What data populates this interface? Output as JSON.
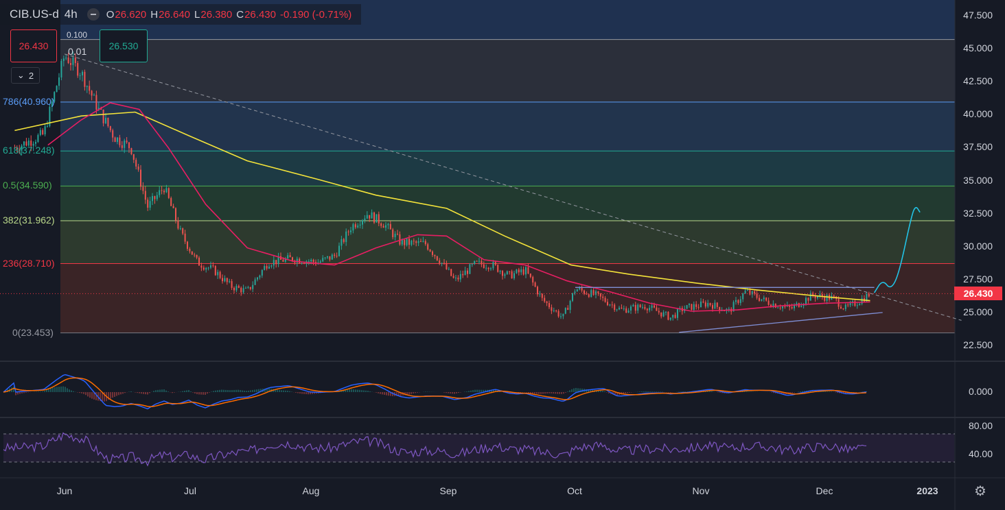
{
  "header": {
    "symbol": "CIB.US-d",
    "timeframe": "4h",
    "open_label": "O",
    "open": "26.620",
    "high_label": "H",
    "high": "26.640",
    "low_label": "L",
    "low": "26.380",
    "close_label": "C",
    "close": "26.430",
    "change": "-0.190 (-0.71%)"
  },
  "trade_panel": {
    "sell": "26.430",
    "buy": "26.530",
    "spread_top": "0.100",
    "spread_qty": "0.01"
  },
  "collapse_label": "2",
  "current_price": "26.430",
  "fib_labels": [
    {
      "text": "786(40.960)",
      "value": 40.96,
      "color": "#5b9cf6"
    },
    {
      "text": "618(37.248)",
      "value": 37.248,
      "color": "#22ab94"
    },
    {
      "text": "0.5(34.590)",
      "value": 34.59,
      "color": "#4caf50"
    },
    {
      "text": "382(31.962)",
      "value": 31.962,
      "color": "#b9d88a"
    },
    {
      "text": "236(28.710)",
      "value": 28.71,
      "color": "#f23645"
    },
    {
      "text": "0(23.453)",
      "value": 23.453,
      "color": "#9598a1"
    }
  ],
  "price_axis": [
    "47.500",
    "45.000",
    "42.500",
    "40.000",
    "37.500",
    "35.000",
    "32.500",
    "30.000",
    "27.500",
    "25.000",
    "22.500"
  ],
  "macd_axis": [
    "0.000"
  ],
  "rsi_axis": [
    "80.00",
    "40.00"
  ],
  "x_axis": [
    {
      "label": "Jun",
      "bold": false
    },
    {
      "label": "Jul",
      "bold": false
    },
    {
      "label": "Aug",
      "bold": false
    },
    {
      "label": "Sep",
      "bold": false
    },
    {
      "label": "Oct",
      "bold": false
    },
    {
      "label": "Nov",
      "bold": false
    },
    {
      "label": "Dec",
      "bold": false
    },
    {
      "label": "2023",
      "bold": true
    }
  ],
  "chart_data": {
    "type": "line",
    "symbol": "CIB.US-d",
    "interval": "4h",
    "y_range": [
      21.5,
      48.5
    ],
    "fib_levels": [
      45.7,
      40.96,
      37.248,
      34.59,
      31.962,
      28.71,
      23.453
    ],
    "x": [
      "Jun",
      "Jul",
      "Aug",
      "Sep",
      "Oct",
      "Nov",
      "Dec"
    ],
    "price_path": [
      [
        "May 20",
        37.5
      ],
      [
        "May 27",
        38.5
      ],
      [
        "Jun 1",
        44.5
      ],
      [
        "Jun 5",
        43.2
      ],
      [
        "Jun 9",
        40.5
      ],
      [
        "Jun 13",
        38.3
      ],
      [
        "Jun 17",
        37.5
      ],
      [
        "Jun 21",
        33.0
      ],
      [
        "Jun 25",
        34.5
      ],
      [
        "Jun 29",
        31.0
      ],
      [
        "Jul 3",
        28.8
      ],
      [
        "Jul 7",
        28.2
      ],
      [
        "Jul 11",
        27.0
      ],
      [
        "Jul 15",
        26.6
      ],
      [
        "Jul 20",
        28.8
      ],
      [
        "Jul 26",
        29.1
      ],
      [
        "Aug 1",
        28.8
      ],
      [
        "Aug 5",
        29.3
      ],
      [
        "Aug 9",
        31.5
      ],
      [
        "Aug 13",
        32.5
      ],
      [
        "Aug 17",
        31.7
      ],
      [
        "Aug 21",
        30.3
      ],
      [
        "Aug 27",
        30.2
      ],
      [
        "Aug 31",
        28.7
      ],
      [
        "Sep 3",
        27.4
      ],
      [
        "Sep 8",
        28.7
      ],
      [
        "Sep 12",
        28.6
      ],
      [
        "Sep 16",
        27.8
      ],
      [
        "Sep 20",
        28.2
      ],
      [
        "Sep 24",
        26.0
      ],
      [
        "Sep 29",
        24.6
      ],
      [
        "Oct 2",
        26.8
      ],
      [
        "Oct 7",
        26.3
      ],
      [
        "Oct 13",
        25.2
      ],
      [
        "Oct 19",
        25.5
      ],
      [
        "Oct 25",
        24.6
      ],
      [
        "Oct 28",
        25.3
      ],
      [
        "Nov 3",
        25.7
      ],
      [
        "Nov 8",
        25.1
      ],
      [
        "Nov 12",
        26.6
      ],
      [
        "Nov 18",
        25.7
      ],
      [
        "Nov 23",
        25.3
      ],
      [
        "Nov 28",
        26.3
      ],
      [
        "Dec 3",
        26.1
      ],
      [
        "Dec 6",
        25.3
      ],
      [
        "Dec 9",
        25.8
      ],
      [
        "Dec 12",
        26.43
      ]
    ],
    "ma200_yellow": [
      [
        "May 20",
        38.8
      ],
      [
        "Jun 5",
        39.9
      ],
      [
        "Jun 18",
        40.2
      ],
      [
        "Jul 1",
        38.4
      ],
      [
        "Jul 15",
        36.5
      ],
      [
        "Aug 1",
        35.1
      ],
      [
        "Aug 15",
        33.9
      ],
      [
        "Sep 1",
        32.9
      ],
      [
        "Sep 15",
        30.8
      ],
      [
        "Oct 1",
        28.6
      ],
      [
        "Oct 15",
        27.9
      ],
      [
        "Nov 1",
        27.2
      ],
      [
        "Nov 15",
        26.7
      ],
      [
        "Dec 1",
        26.2
      ],
      [
        "Dec 12",
        25.9
      ]
    ],
    "ma50_red": [
      [
        "May 28",
        37.7
      ],
      [
        "Jun 5",
        39.6
      ],
      [
        "Jun 12",
        40.9
      ],
      [
        "Jun 19",
        40.4
      ],
      [
        "Jun 26",
        37.5
      ],
      [
        "Jul 5",
        33.2
      ],
      [
        "Jul 15",
        29.9
      ],
      [
        "Jul 26",
        28.9
      ],
      [
        "Aug 5",
        28.6
      ],
      [
        "Aug 15",
        29.9
      ],
      [
        "Aug 25",
        30.9
      ],
      [
        "Sep 1",
        30.8
      ],
      [
        "Sep 10",
        29.0
      ],
      [
        "Sep 20",
        28.6
      ],
      [
        "Sep 30",
        27.4
      ],
      [
        "Oct 10",
        26.6
      ],
      [
        "Oct 20",
        25.7
      ],
      [
        "Oct 30",
        25.1
      ],
      [
        "Nov 10",
        25.2
      ],
      [
        "Nov 20",
        25.5
      ],
      [
        "Dec 1",
        25.7
      ],
      [
        "Dec 12",
        25.8
      ]
    ],
    "trend_lines": {
      "descending_dashed": [
        [
          "Jun 1",
          44.6
        ],
        [
          "Jan 3",
          24.4
        ]
      ],
      "range_top": [
        [
          "Oct 2",
          26.9
        ],
        [
          "Dec 13",
          26.9
        ]
      ],
      "rising_support": [
        [
          "Oct 27",
          23.5
        ],
        [
          "Dec 15",
          25.0
        ]
      ]
    },
    "projection": [
      [
        "Dec 13",
        26.5
      ],
      [
        "Dec 15",
        27.5
      ],
      [
        "Dec 17",
        26.7
      ],
      [
        "Dec 19",
        28.0
      ],
      [
        "Dec 22",
        32.4
      ],
      [
        "Dec 23",
        33.1
      ],
      [
        "Dec 24",
        32.6
      ]
    ],
    "macd": {
      "zero": "0.000"
    },
    "rsi": {
      "levels": [
        70,
        30
      ],
      "labels": [
        "80.00",
        "40.00"
      ]
    }
  }
}
